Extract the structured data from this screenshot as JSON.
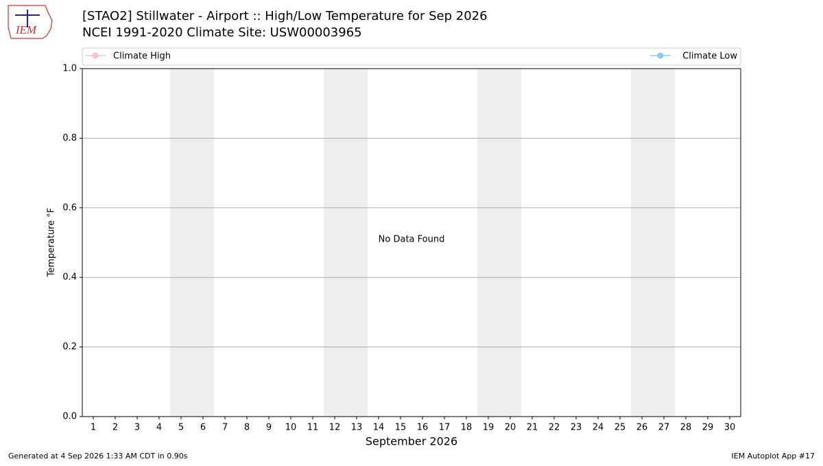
{
  "logo_text": "IEM",
  "chart_data": {
    "type": "line",
    "title": "[STAO2] Stillwater - Airport :: High/Low Temperature for Sep 2026",
    "subtitle": "NCEI 1991-2020 Climate Site: USW00003965",
    "x_label": "September 2026",
    "y_label": "Temperature °F",
    "annotation": "No Data Found",
    "xlim": [
      0.5,
      30.5
    ],
    "xticks": [
      1,
      2,
      3,
      4,
      5,
      6,
      7,
      8,
      9,
      10,
      11,
      12,
      13,
      14,
      15,
      16,
      17,
      18,
      19,
      20,
      21,
      22,
      23,
      24,
      25,
      26,
      27,
      28,
      29,
      30
    ],
    "ylim": [
      0,
      1
    ],
    "yticks": [
      {
        "value": 0,
        "label": "0.0"
      },
      {
        "value": 0.2,
        "label": "0.2"
      },
      {
        "value": 0.4,
        "label": "0.4"
      },
      {
        "value": 0.6,
        "label": "0.6"
      },
      {
        "value": 0.8,
        "label": "0.8"
      },
      {
        "value": 1,
        "label": "1.0"
      }
    ],
    "grid": true,
    "series": [
      {
        "name": "Climate High",
        "color": "#ffc0cb",
        "x": [],
        "values": []
      },
      {
        "name": "Climate Low",
        "color": "#87ceeb",
        "x": [],
        "values": []
      }
    ],
    "footer_left": "Generated at 4 Sep 2026 1:33 AM CDT in 0.90s",
    "footer_right": "IEM Autoplot App #17"
  }
}
